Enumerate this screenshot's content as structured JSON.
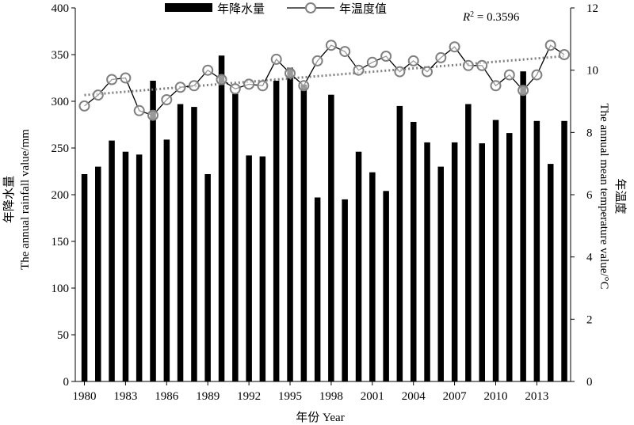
{
  "chart_data": {
    "type": "bar",
    "title": "",
    "x": [
      1980,
      1981,
      1982,
      1983,
      1984,
      1985,
      1986,
      1987,
      1988,
      1989,
      1990,
      1991,
      1992,
      1993,
      1994,
      1995,
      1996,
      1997,
      1998,
      1999,
      2000,
      2001,
      2002,
      2003,
      2004,
      2005,
      2006,
      2007,
      2008,
      2009,
      2010,
      2011,
      2012,
      2013,
      2014,
      2015
    ],
    "x_tick_labels": [
      "1980",
      "1983",
      "1986",
      "1989",
      "1992",
      "1995",
      "1998",
      "2001",
      "2004",
      "2007",
      "2010",
      "2013"
    ],
    "xlabel": "年份 Year",
    "ylabel_cn": "年降水量",
    "ylabel_en": "The annual rainfall value/mm",
    "y2label_cn": "年温度",
    "y2label_en": "The annual mean temperature value/°C",
    "ylim": [
      0,
      400
    ],
    "y_ticks": [
      "0",
      "50",
      "100",
      "150",
      "200",
      "250",
      "300",
      "350",
      "400"
    ],
    "y2lim": [
      0,
      12
    ],
    "y2_ticks": [
      "0",
      "2",
      "4",
      "6",
      "8",
      "10",
      "12"
    ],
    "grid": false,
    "legend_position": "top-center",
    "series": [
      {
        "name": "年降水量",
        "type": "bar",
        "axis": "left",
        "color": "#000000",
        "values": [
          222,
          230,
          258,
          246,
          243,
          322,
          259,
          297,
          294,
          222,
          349,
          308,
          242,
          241,
          322,
          336,
          318,
          197,
          307,
          195,
          246,
          224,
          204,
          295,
          278,
          256,
          230,
          256,
          297,
          255,
          280,
          266,
          332,
          279,
          233,
          279
        ]
      },
      {
        "name": "年温度值",
        "type": "line",
        "axis": "right",
        "color": "#000000",
        "marker_color": "#808080",
        "values": [
          8.85,
          9.2,
          9.7,
          9.75,
          8.7,
          8.55,
          9.05,
          9.45,
          9.5,
          10.0,
          9.7,
          9.4,
          9.55,
          9.5,
          10.35,
          9.9,
          9.5,
          10.3,
          10.8,
          10.6,
          10.0,
          10.25,
          10.45,
          9.95,
          10.3,
          9.95,
          10.4,
          10.75,
          10.15,
          10.15,
          9.5,
          9.85,
          9.35,
          9.85,
          10.8,
          10.5
        ]
      }
    ],
    "trendline": {
      "series": "年温度值",
      "style": "dotted",
      "color": "#808080",
      "start_value": 9.2,
      "end_value": 10.45
    },
    "annotation": {
      "r2_label": "R",
      "r2_sup": "2",
      "r2_value": " = 0.3596"
    }
  }
}
